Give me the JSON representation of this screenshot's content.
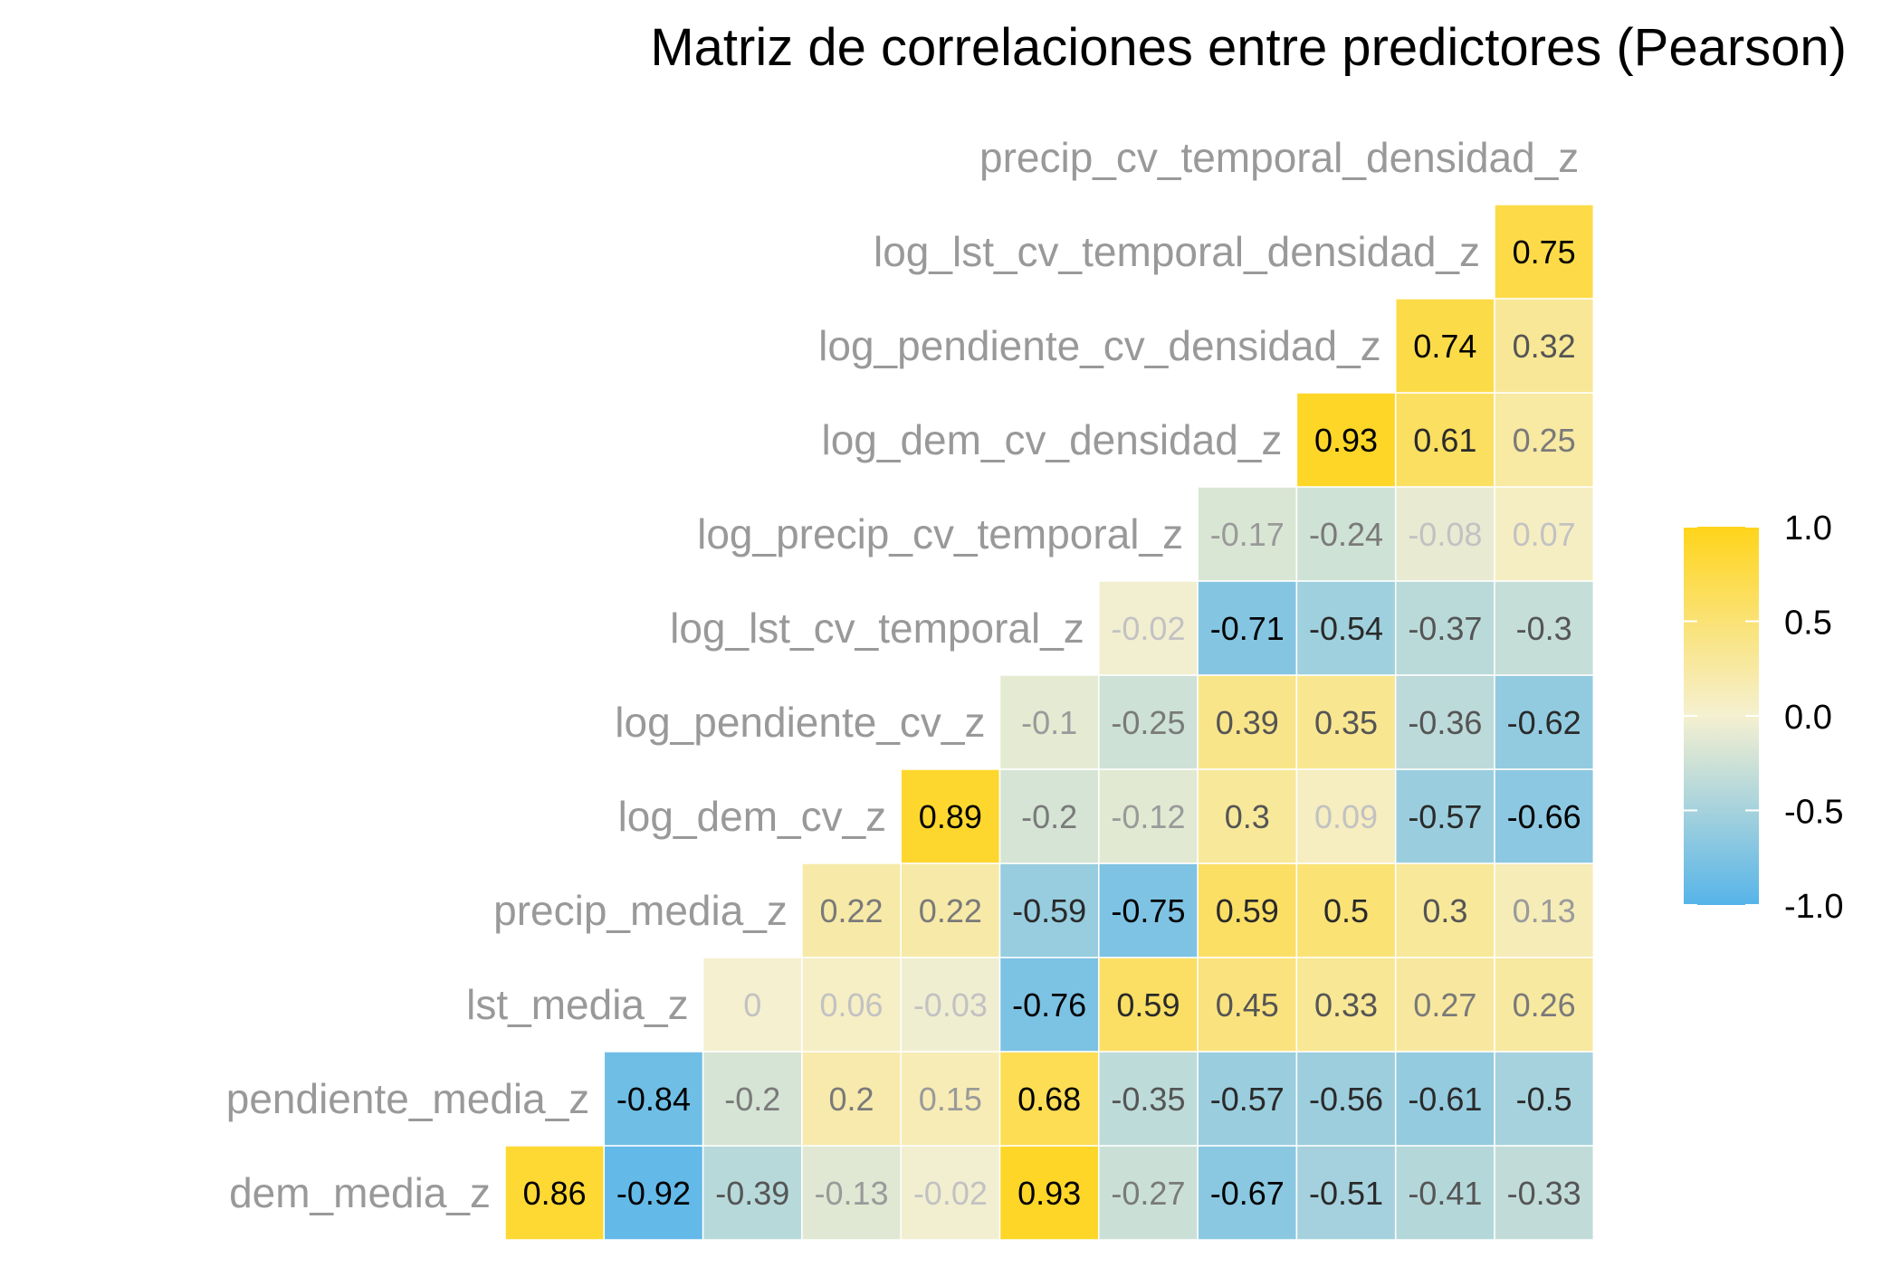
{
  "chart_data": {
    "type": "heatmap",
    "title": "Matriz de correlaciones entre predictores (Pearson)",
    "variables": [
      "dem_media_z",
      "pendiente_media_z",
      "lst_media_z",
      "precip_media_z",
      "log_dem_cv_z",
      "log_pendiente_cv_z",
      "log_lst_cv_temporal_z",
      "log_precip_cv_temporal_z",
      "log_dem_cv_densidad_z",
      "log_pendiente_cv_densidad_z",
      "log_lst_cv_temporal_densidad_z",
      "precip_cv_temporal_densidad_z"
    ],
    "matrix": [
      [
        0.86,
        -0.92,
        -0.39,
        -0.13,
        -0.02,
        0.93,
        -0.27,
        -0.67,
        -0.51,
        -0.41,
        -0.33
      ],
      [
        -0.84,
        -0.2,
        0.2,
        0.15,
        0.68,
        -0.35,
        -0.57,
        -0.56,
        -0.61,
        -0.5
      ],
      [
        0,
        0.06,
        -0.03,
        -0.76,
        0.59,
        0.45,
        0.33,
        0.27,
        0.26
      ],
      [
        0.22,
        0.22,
        -0.59,
        -0.75,
        0.59,
        0.5,
        0.3,
        0.13
      ],
      [
        0.89,
        -0.2,
        -0.12,
        0.3,
        0.09,
        -0.57,
        -0.66
      ],
      [
        -0.1,
        -0.25,
        0.39,
        0.35,
        -0.36,
        -0.62
      ],
      [
        -0.02,
        -0.71,
        -0.54,
        -0.37,
        -0.3
      ],
      [
        -0.17,
        -0.24,
        -0.08,
        0.07
      ],
      [
        0.93,
        0.61,
        0.25
      ],
      [
        0.74,
        0.32
      ],
      [
        0.75
      ],
      []
    ],
    "color_scale": {
      "low": "#56B4E9",
      "mid": "#F5F0D0",
      "high": "#FFD41A",
      "limits": [
        -1.0,
        1.0
      ]
    },
    "legend": {
      "position": "right",
      "tick_labels": [
        "1.0",
        "0.5",
        "0.0",
        "-0.5",
        "-1.0"
      ],
      "tick_values": [
        1.0,
        0.5,
        0.0,
        -0.5,
        -1.0
      ]
    },
    "grid": false
  }
}
